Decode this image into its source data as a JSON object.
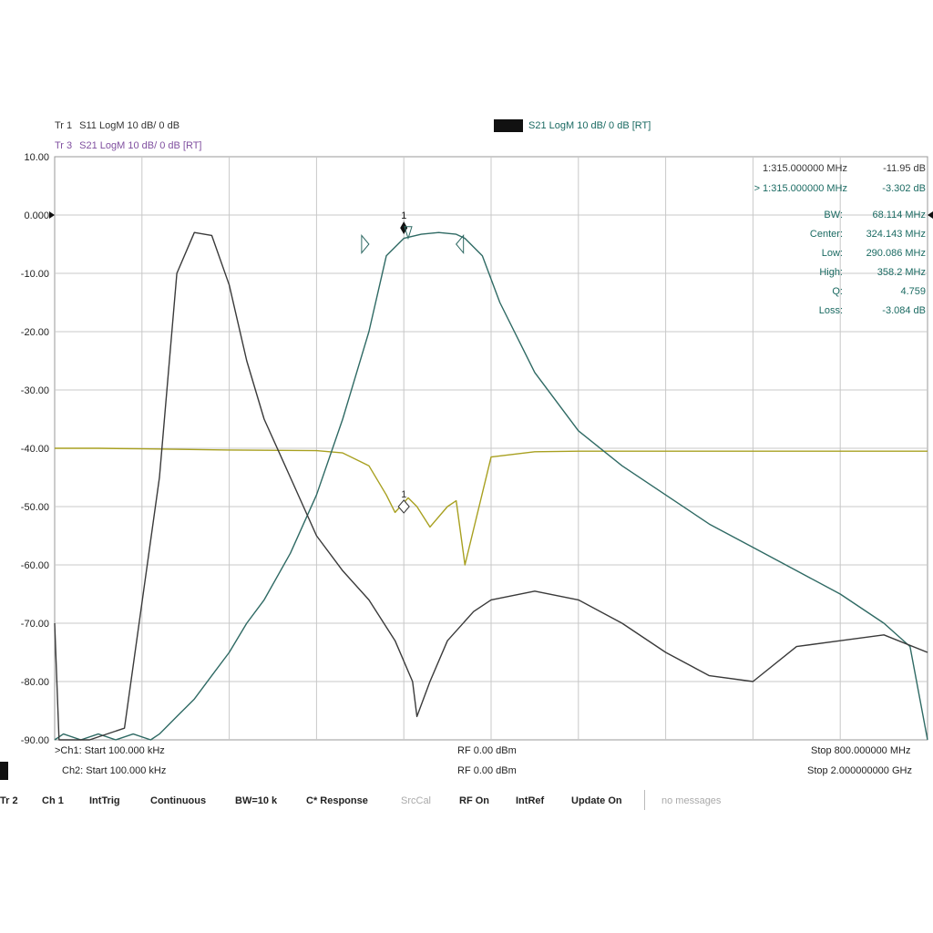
{
  "header": {
    "tr1": {
      "label": "Tr 1",
      "desc": "S11 LogM 10 dB/ 0 dB"
    },
    "tr3": {
      "label": "Tr 3",
      "desc": "S21 LogM 10 dB/ 0 dB [RT]"
    },
    "tr2": {
      "desc": "S21 LogM 10 dB/ 0 dB [RT]"
    }
  },
  "markers": {
    "m1_s11": {
      "freq": "1:315.000000 MHz",
      "value": "-11.95 dB"
    },
    "m1_s21": {
      "freq": "> 1:315.000000 MHz",
      "value": "-3.302 dB"
    }
  },
  "bw_stats": [
    {
      "label": "BW:",
      "value": "68.114 MHz"
    },
    {
      "label": "Center:",
      "value": "324.143 MHz"
    },
    {
      "label": "Low:",
      "value": "290.086 MHz"
    },
    {
      "label": "High:",
      "value": "358.2 MHz"
    },
    {
      "label": "Q:",
      "value": "4.759"
    },
    {
      "label": "Loss:",
      "value": "-3.084 dB"
    }
  ],
  "footer": {
    "ch1_start": ">Ch1: Start 100.000 kHz",
    "ch1_rf": "RF 0.00 dBm",
    "ch1_stop": "Stop 800.000000 MHz",
    "ch2_start": "Ch2: Start 100.000 kHz",
    "ch2_rf": "RF 0.00 dBm",
    "ch2_stop": "Stop 2.000000000 GHz"
  },
  "statusbar": {
    "tr": "Tr 2",
    "ch": "Ch 1",
    "trig": "IntTrig",
    "mode": "Continuous",
    "bw": "BW=10 k",
    "cal": "C* Response",
    "srccal": "SrcCal",
    "rf": "RF On",
    "ref": "IntRef",
    "update": "Update On",
    "msg": "no messages"
  },
  "colors": {
    "s11": "#a8a020",
    "s21_ch1": "#2f6a64",
    "s21_ch2": "#3a3a3a",
    "grid": "#c8c8c8"
  },
  "chart_data": {
    "type": "line",
    "xlabel": "",
    "ylabel": "",
    "ylim": [
      -90,
      10
    ],
    "yticks": [
      "10.00",
      "0.000",
      "-10.00",
      "-20.00",
      "-30.00",
      "-40.00",
      "-50.00",
      "-60.00",
      "-70.00",
      "-80.00",
      "-90.00"
    ],
    "xlim": [
      0,
      10
    ],
    "grid": true,
    "series": [
      {
        "name": "S11",
        "x": [
          0,
          0.05,
          0.5,
          1,
          2,
          3,
          3.3,
          3.6,
          3.8,
          3.9,
          4.05,
          4.15,
          4.3,
          4.5,
          4.6,
          4.7,
          5,
          5.5,
          6,
          6.5,
          7,
          8,
          9,
          10
        ],
        "y": [
          -40,
          -40,
          -40,
          -40.1,
          -40.3,
          -40.4,
          -40.8,
          -43,
          -48,
          -51,
          -48.5,
          -50,
          -53.5,
          -50,
          -49,
          -60,
          -41.5,
          -40.6,
          -40.5,
          -40.5,
          -40.5,
          -40.5,
          -40.5,
          -40.5
        ]
      },
      {
        "name": "S21",
        "x": [
          0,
          0.1,
          0.3,
          0.5,
          0.7,
          0.9,
          1.1,
          1.2,
          1.4,
          1.6,
          1.8,
          2,
          2.2,
          2.4,
          2.7,
          3,
          3.3,
          3.6,
          3.8,
          4,
          4.2,
          4.4,
          4.6,
          4.7,
          4.9,
          5.1,
          5.5,
          6,
          6.5,
          7,
          7.5,
          8,
          8.5,
          9,
          9.5,
          9.8,
          10
        ],
        "y": [
          -90,
          -89,
          -90,
          -89,
          -90,
          -89,
          -90,
          -89,
          -86,
          -83,
          -79,
          -75,
          -70,
          -66,
          -58,
          -48,
          -35,
          -20,
          -7,
          -4,
          -3.3,
          -3,
          -3.3,
          -4,
          -7,
          -15,
          -27,
          -37,
          -43,
          -48,
          -53,
          -57,
          -61,
          -65,
          -70,
          -74,
          -90
        ]
      },
      {
        "name": "S21 Ch2",
        "x": [
          0,
          0.05,
          0.4,
          0.8,
          1.2,
          1.4,
          1.6,
          1.8,
          2,
          2.2,
          2.4,
          2.7,
          3,
          3.3,
          3.6,
          3.9,
          4.1,
          4.15,
          4.3,
          4.5,
          4.8,
          5,
          5.5,
          6,
          6.5,
          7,
          7.5,
          8,
          8.5,
          9,
          9.5,
          10
        ],
        "y": [
          -70,
          -90,
          -90,
          -88,
          -45,
          -10,
          -3,
          -3.5,
          -12,
          -25,
          -35,
          -45,
          -55,
          -61,
          -66,
          -73,
          -80,
          -86,
          -80,
          -73,
          -68,
          -66,
          -64.5,
          -66,
          -70,
          -75,
          -79,
          -80,
          -74,
          -73,
          -72,
          -75
        ]
      }
    ]
  }
}
